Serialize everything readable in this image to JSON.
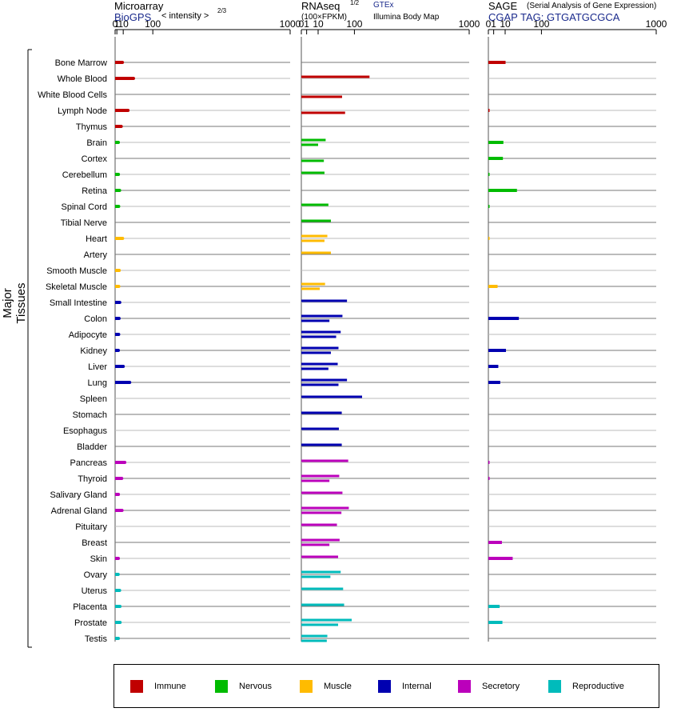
{
  "headers": {
    "microarray": {
      "title": "Microarray",
      "source": "BioGPS",
      "scale_note": "< intensity >",
      "exponent": "2/3"
    },
    "rnaseq": {
      "title": "RNAseq",
      "exponent": "1/2",
      "scale_note": "(100×FPKM)",
      "source1": "GTEx",
      "source2": "Illumina Body Map"
    },
    "sage": {
      "title": "SAGE",
      "subtitle": "(Serial Analysis of Gene Expression)",
      "tag_line": "CGAP TAG: GTGATGCGCA"
    }
  },
  "y_axis_label": "Major Tissues",
  "legend": [
    {
      "name": "Immune",
      "color": "#c00000"
    },
    {
      "name": "Nervous",
      "color": "#00bb00"
    },
    {
      "name": "Muscle",
      "color": "#ffbb00"
    },
    {
      "name": "Internal",
      "color": "#0000b0"
    },
    {
      "name": "Secretory",
      "color": "#bb00bb"
    },
    {
      "name": "Reproductive",
      "color": "#00bbbb"
    }
  ],
  "chart_data": [
    {
      "type": "bar",
      "panel": "Microarray",
      "scale": "power 2/3",
      "xlim": [
        0,
        1000
      ],
      "xticks": [
        "0",
        "1",
        "10",
        "100",
        "1000"
      ],
      "categories": [
        "Bone Marrow",
        "Whole Blood",
        "White Blood Cells",
        "Lymph Node",
        "Thymus",
        "Brain",
        "Cortex",
        "Cerebellum",
        "Retina",
        "Spinal Cord",
        "Tibial Nerve",
        "Heart",
        "Artery",
        "Smooth Muscle",
        "Skeletal Muscle",
        "Small Intestine",
        "Colon",
        "Adipocyte",
        "Kidney",
        "Liver",
        "Lung",
        "Spleen",
        "Stomach",
        "Esophagus",
        "Bladder",
        "Pancreas",
        "Thyroid",
        "Salivary Gland",
        "Adrenal Gland",
        "Pituitary",
        "Breast",
        "Skin",
        "Ovary",
        "Uterus",
        "Placenta",
        "Prostate",
        "Testis"
      ],
      "systems": [
        "Immune",
        "Immune",
        "Immune",
        "Immune",
        "Immune",
        "Nervous",
        "Nervous",
        "Nervous",
        "Nervous",
        "Nervous",
        "Nervous",
        "Muscle",
        "Muscle",
        "Muscle",
        "Muscle",
        "Internal",
        "Internal",
        "Internal",
        "Internal",
        "Internal",
        "Internal",
        "Internal",
        "Internal",
        "Internal",
        "Internal",
        "Secretory",
        "Secretory",
        "Secretory",
        "Secretory",
        "Secretory",
        "Secretory",
        "Secretory",
        "Reproductive",
        "Reproductive",
        "Reproductive",
        "Reproductive",
        "Reproductive"
      ],
      "values": [
        8.5,
        34,
        null,
        20,
        6.5,
        2.5,
        null,
        2.6,
        4.1,
        2.9,
        null,
        8.8,
        null,
        3.6,
        3.0,
        4.3,
        3.4,
        2.9,
        2.5,
        10,
        24,
        null,
        null,
        null,
        null,
        13,
        7.3,
        2.6,
        7.8,
        null,
        null,
        2.5,
        2.3,
        4.1,
        4.6,
        4.8,
        2.5
      ]
    },
    {
      "type": "bar",
      "panel": "RNAseq",
      "scale": "power 1/2",
      "xlim": [
        0,
        1000
      ],
      "xticks": [
        "0",
        "1",
        "10",
        "100",
        "1000"
      ],
      "series": [
        {
          "name": "GTEx",
          "values": [
            null,
            165,
            null,
            null,
            null,
            21,
            null,
            19,
            null,
            26,
            31,
            24,
            31,
            null,
            20,
            74,
            60,
            55,
            49,
            47,
            74,
            131,
            58,
            50,
            58,
            78,
            51,
            60,
            80,
            45,
            52,
            48,
            55,
            62,
            65,
            90,
            24
          ]
        },
        {
          "name": "Illumina Body Map",
          "values": [
            null,
            null,
            59,
            68,
            null,
            10,
            18,
            null,
            null,
            null,
            null,
            19,
            null,
            null,
            12,
            null,
            28,
            43,
            31,
            26,
            49,
            null,
            null,
            null,
            null,
            null,
            28,
            null,
            57,
            null,
            28,
            null,
            30,
            null,
            null,
            48,
            23
          ]
        }
      ]
    },
    {
      "type": "bar",
      "panel": "SAGE",
      "scale": "power 1/2",
      "xlim": [
        0,
        1000
      ],
      "xticks": [
        "0",
        "1",
        "10",
        "100",
        "1000"
      ],
      "values": [
        10.5,
        null,
        null,
        0.01,
        null,
        8,
        7.5,
        0.01,
        29,
        0.01,
        null,
        0.005,
        null,
        null,
        3,
        null,
        33,
        null,
        11,
        3.5,
        5,
        null,
        null,
        null,
        null,
        0.02,
        0.03,
        null,
        null,
        null,
        6.5,
        21,
        null,
        null,
        4.5,
        7,
        null
      ]
    }
  ]
}
